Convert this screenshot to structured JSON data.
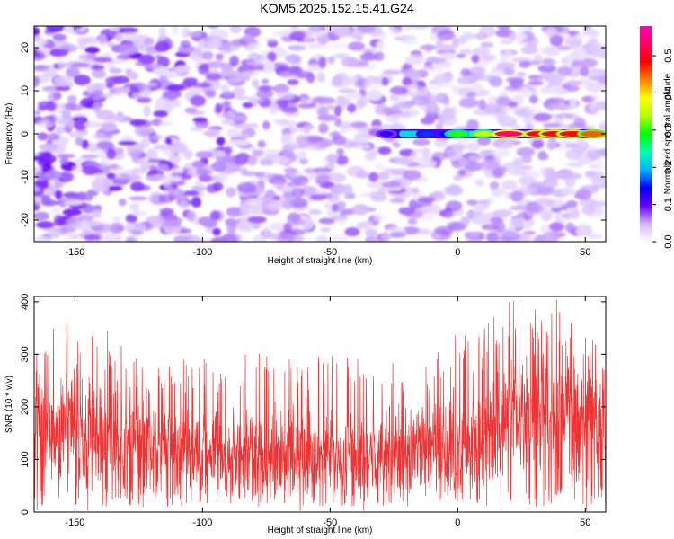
{
  "title": "KOM5.2025.152.15.41.G24",
  "colors": {
    "snr_line": "#f03232",
    "colorbar_stops": [
      "#ffffff",
      "#d2b4ff",
      "#6400ff",
      "#0000ff",
      "#00b4ff",
      "#00ffb4",
      "#00ff00",
      "#b4ff00",
      "#ffff00",
      "#ff8000",
      "#ff0000",
      "#ff0064",
      "#ff00b4"
    ]
  },
  "chart_data": [
    {
      "type": "heatmap",
      "xlabel": "Height of straight line (km)",
      "ylabel": "Frequency (Hz)",
      "xlim": [
        -166,
        58
      ],
      "ylim": [
        -25,
        25
      ],
      "x_ticks": [
        -150,
        -100,
        -50,
        0,
        50
      ],
      "x_tick_labels": [
        "-150",
        "-100",
        "-50",
        "0",
        "50"
      ],
      "y_ticks": [
        -20,
        -10,
        0,
        10,
        20
      ],
      "y_tick_labels": [
        "-20",
        "-10",
        "0",
        "10",
        "20"
      ],
      "colorbar": {
        "label": "Normalized spectral amplitude",
        "range": [
          0,
          0.58
        ],
        "ticks": [
          0.0,
          0.1,
          0.2,
          0.3,
          0.4,
          0.5
        ],
        "tick_labels": [
          "0.0",
          "0.1",
          "0.2",
          "0.3",
          "0.4",
          "0.5"
        ]
      },
      "signal_ridge": {
        "frequency_hz": 0,
        "x_start_km": -30,
        "x_end_km": 56,
        "peaks": [
          {
            "x_km": -28,
            "value": 0.12
          },
          {
            "x_km": -12,
            "value": 0.16
          },
          {
            "x_km": -5,
            "value": 0.14
          },
          {
            "x_km": 0,
            "value": 0.3
          },
          {
            "x_km": 10,
            "value": 0.35
          },
          {
            "x_km": 20,
            "value": 0.55
          },
          {
            "x_km": 32,
            "value": 0.5
          },
          {
            "x_km": 38,
            "value": 0.5
          },
          {
            "x_km": 45,
            "value": 0.5
          },
          {
            "x_km": 53,
            "value": 0.45
          }
        ]
      },
      "background_noise_level": 0.07
    },
    {
      "type": "line",
      "xlabel": "Height of straight line (km)",
      "ylabel": "SNR (10 * v/v)",
      "xlim": [
        -166,
        58
      ],
      "ylim": [
        0,
        410
      ],
      "x_ticks": [
        -150,
        -100,
        -50,
        0,
        50
      ],
      "x_tick_labels": [
        "-150",
        "-100",
        "-50",
        "0",
        "50"
      ],
      "y_ticks": [
        0,
        100,
        200,
        300,
        400
      ],
      "y_tick_labels": [
        "0",
        "100",
        "200",
        "300",
        "400"
      ],
      "series": [
        {
          "x": [
            -166,
            -160,
            -150,
            -140,
            -130,
            -120,
            -110,
            -100,
            -90,
            -80,
            -70,
            -60,
            -50,
            -40,
            -30,
            -20,
            -10,
            0,
            10,
            20,
            30,
            40,
            50,
            58
          ],
          "y": [
            190,
            160,
            150,
            135,
            130,
            125,
            120,
            115,
            110,
            105,
            110,
            110,
            105,
            100,
            110,
            120,
            130,
            120,
            130,
            175,
            195,
            185,
            180,
            170
          ],
          "peak_y": [
            350,
            380,
            360,
            360,
            310,
            290,
            300,
            300,
            300,
            310,
            300,
            280,
            310,
            300,
            300,
            290,
            320,
            340,
            360,
            400,
            410,
            405,
            360,
            330
          ]
        }
      ]
    }
  ]
}
